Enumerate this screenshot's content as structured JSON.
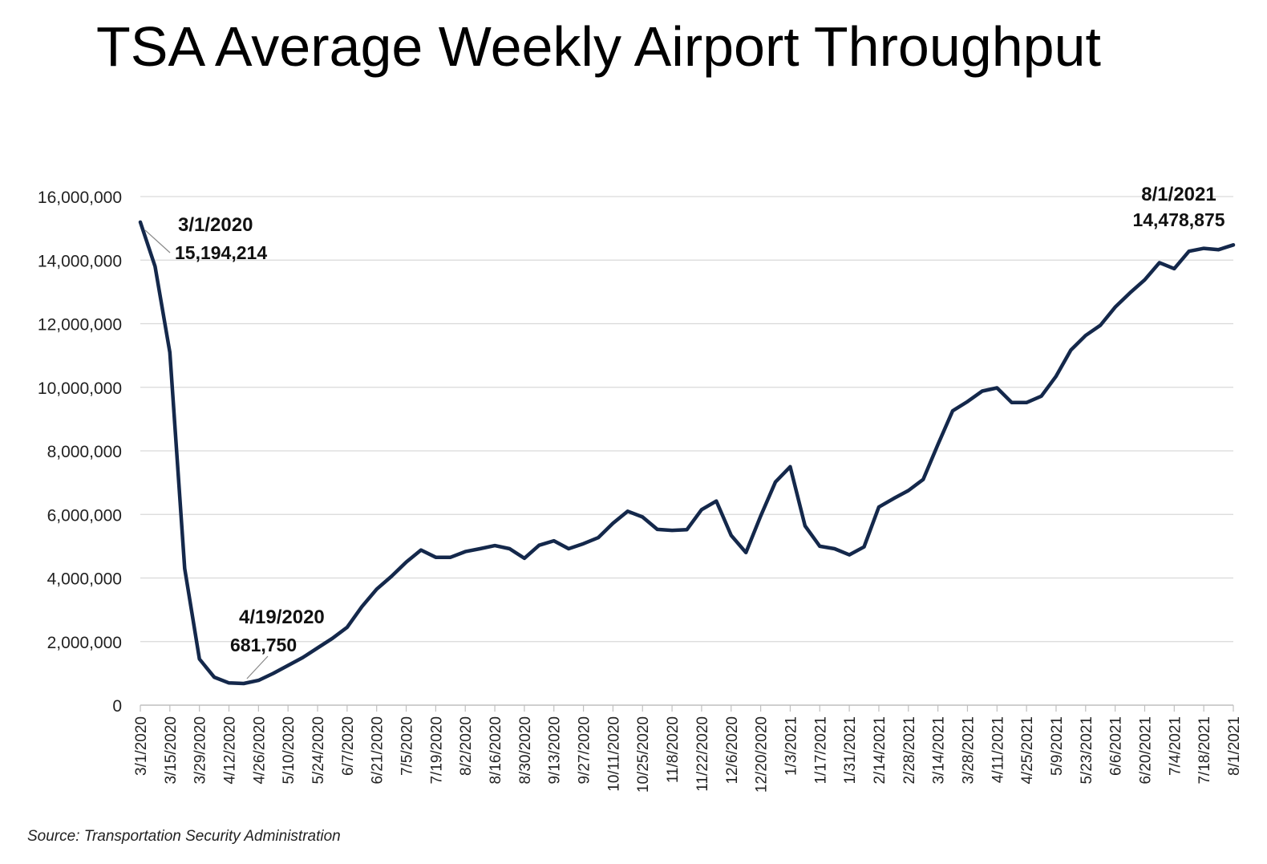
{
  "title": "TSA Average Weekly Airport Throughput",
  "source": "Source: Transportation Security Administration",
  "chart_data": {
    "type": "line",
    "title": "TSA Average Weekly Airport Throughput",
    "xlabel": "",
    "ylabel": "",
    "ylim": [
      0,
      16000000
    ],
    "yticks": [
      0,
      2000000,
      4000000,
      6000000,
      8000000,
      10000000,
      12000000,
      14000000,
      16000000
    ],
    "ytick_labels": [
      "0",
      "2,000,000",
      "4,000,000",
      "6,000,000",
      "8,000,000",
      "10,000,000",
      "12,000,000",
      "14,000,000",
      "16,000,000"
    ],
    "grid": true,
    "line_color": "#14284b",
    "xtick_labels": [
      "3/1/2020",
      "3/15/2020",
      "3/29/2020",
      "4/12/2020",
      "4/26/2020",
      "5/10/2020",
      "5/24/2020",
      "6/7/2020",
      "6/21/2020",
      "7/5/2020",
      "7/19/2020",
      "8/2/2020",
      "8/16/2020",
      "8/30/2020",
      "9/13/2020",
      "9/27/2020",
      "10/11/2020",
      "10/25/2020",
      "11/8/2020",
      "11/22/2020",
      "12/6/2020",
      "12/20/2020",
      "1/3/2021",
      "1/17/2021",
      "1/31/2021",
      "2/14/2021",
      "2/28/2021",
      "3/14/2021",
      "3/28/2021",
      "4/11/2021",
      "4/25/2021",
      "5/9/2021",
      "5/23/2021",
      "6/6/2021",
      "6/20/2021",
      "7/4/2021",
      "7/18/2021",
      "8/1/2021"
    ],
    "series": [
      {
        "name": "Average weekly throughput",
        "values": [
          15194214,
          13800000,
          11100000,
          4300000,
          1450000,
          880000,
          700000,
          681750,
          780000,
          1000000,
          1250000,
          1500000,
          1800000,
          2100000,
          2450000,
          3100000,
          3650000,
          4050000,
          4500000,
          4880000,
          4650000,
          4650000,
          4830000,
          4920000,
          5020000,
          4920000,
          4620000,
          5030000,
          5170000,
          4920000,
          5080000,
          5270000,
          5720000,
          6100000,
          5920000,
          5530000,
          5500000,
          5520000,
          6150000,
          6420000,
          5340000,
          4800000,
          5950000,
          7020000,
          7500000,
          5640000,
          5000000,
          4920000,
          4730000,
          4980000,
          6230000,
          6500000,
          6750000,
          7100000,
          8200000,
          9260000,
          9550000,
          9880000,
          9980000,
          9520000,
          9520000,
          9720000,
          10350000,
          11170000,
          11630000,
          11950000,
          12520000,
          12970000,
          13380000,
          13920000,
          13730000,
          14280000,
          14370000,
          14330000,
          14478875
        ]
      }
    ],
    "annotations": [
      {
        "date": "3/1/2020",
        "value": "15,194,214"
      },
      {
        "date": "4/19/2020",
        "value": "681,750"
      },
      {
        "date": "8/1/2021",
        "value": "14,478,875"
      }
    ]
  }
}
